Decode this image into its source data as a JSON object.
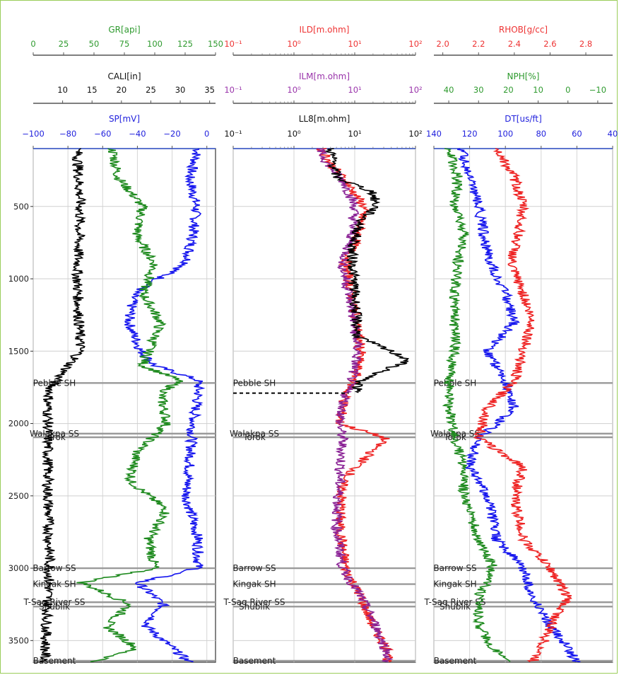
{
  "chart_data": {
    "type": "line",
    "y_axis": {
      "ylim": [
        3650,
        100
      ],
      "ticks": [
        500,
        1000,
        1500,
        2000,
        2500,
        3000,
        3500
      ],
      "grid": true
    },
    "panels": [
      {
        "axes": [
          {
            "title": "GR[api]",
            "color": "#2e9a2e",
            "xlim": [
              0,
              150
            ],
            "ticks": [
              "0",
              "25",
              "50",
              "75",
              "100",
              "125",
              "150"
            ],
            "tick_values": [
              0,
              25,
              50,
              75,
              100,
              125,
              150
            ]
          },
          {
            "title": "CALI[in]",
            "color": "#111111",
            "xlim": [
              5,
              36
            ],
            "ticks": [
              "10",
              "15",
              "20",
              "25",
              "30",
              "35"
            ],
            "tick_values": [
              10,
              15,
              20,
              25,
              30,
              35
            ]
          },
          {
            "title": "SP[mV]",
            "color": "#2222dd",
            "xlim": [
              -100,
              5
            ],
            "ticks": [
              "−100",
              "−80",
              "−60",
              "−40",
              "−20",
              "0"
            ],
            "tick_values": [
              -100,
              -80,
              -60,
              -40,
              -20,
              0
            ]
          }
        ],
        "grid_x": [
          -100,
          -80,
          -60,
          -40,
          -20,
          0
        ],
        "series": [
          {
            "axis": 2,
            "color": "#1515ee",
            "depth": [
              100,
              300,
              500,
              700,
              900,
              1000,
              1100,
              1300,
              1500,
              1600,
              1700,
              1800,
              2000,
              2300,
              2500,
              2800,
              3000,
              3100,
              3250,
              3400,
              3550,
              3650
            ],
            "values": [
              -5,
              -10,
              -6,
              -8,
              -12,
              -28,
              -42,
              -45,
              -38,
              -30,
              -5,
              -5,
              -8,
              -10,
              -12,
              -5,
              -5,
              -40,
              -25,
              -35,
              -20,
              -10
            ]
          },
          {
            "axis": 0,
            "color": "#1e8a1e",
            "depth": [
              100,
              300,
              500,
              700,
              900,
              1100,
              1300,
              1500,
              1600,
              1700,
              1800,
              2000,
              2200,
              2400,
              2600,
              2800,
              3000,
              3100,
              3250,
              3400,
              3550,
              3650
            ],
            "values": [
              65,
              70,
              90,
              85,
              100,
              90,
              105,
              95,
              90,
              120,
              105,
              110,
              85,
              80,
              110,
              95,
              100,
              40,
              80,
              60,
              85,
              50
            ]
          },
          {
            "axis": 1,
            "color": "#000000",
            "depth": [
              100,
              500,
              1000,
              1500,
              1650,
              1750,
              1850,
              2500,
              3000,
              3600,
              3650
            ],
            "values": [
              12.5,
              13,
              12.5,
              13,
              10,
              8,
              7.5,
              7.5,
              7.8,
              7,
              7
            ]
          }
        ],
        "formations": [
          {
            "name": "Pebble SH",
            "depth": 1720
          },
          {
            "name": "Walakpa SS",
            "depth": 2070
          },
          {
            "name": "Torok",
            "depth": 2095
          },
          {
            "name": "Barrow SS",
            "depth": 3000
          },
          {
            "name": "Kingak SH",
            "depth": 3110
          },
          {
            "name": "T-Sag River SS",
            "depth": 3235
          },
          {
            "name": "Shublik",
            "depth": 3265
          },
          {
            "name": "Basement",
            "depth": 3640
          }
        ]
      },
      {
        "axes": [
          {
            "title": "ILD[m.ohm]",
            "color": "#ee3333",
            "xlim": [
              -1,
              2
            ],
            "scale": "log",
            "ticks": [
              "10⁻¹",
              "10⁰",
              "10¹",
              "10²"
            ],
            "tick_values": [
              -1,
              0,
              1,
              2
            ]
          },
          {
            "title": "ILM[m.ohm]",
            "color": "#9933aa",
            "xlim": [
              -1,
              2
            ],
            "scale": "log",
            "ticks": [
              "10⁻¹",
              "10⁰",
              "10¹",
              "10²"
            ],
            "tick_values": [
              -1,
              0,
              1,
              2
            ]
          },
          {
            "title": "LL8[m.ohm]",
            "color": "#111111",
            "xlim": [
              -1,
              2
            ],
            "scale": "log",
            "ticks": [
              "10⁻¹",
              "10⁰",
              "10¹",
              "10²"
            ],
            "tick_values": [
              -1,
              0,
              1,
              2
            ]
          }
        ],
        "grid_x": [
          -1,
          0,
          1,
          2
        ],
        "series": [
          {
            "axis": 0,
            "color": "#ee2222",
            "depth": [
              100,
              200,
              350,
              500,
              700,
              900,
              1200,
              1500,
              1700,
              1800,
              2000,
              2100,
              2400,
              2700,
              3000,
              3200,
              3400,
              3600,
              3650
            ],
            "values": [
              0.45,
              0.6,
              0.9,
              1.15,
              1.05,
              0.85,
              1.0,
              1.1,
              1.0,
              0.85,
              0.75,
              1.5,
              0.8,
              0.75,
              0.85,
              1.1,
              1.3,
              1.6,
              1.5
            ]
          },
          {
            "axis": 1,
            "color": "#8a2295",
            "depth": [
              100,
              200,
              350,
              500,
              700,
              900,
              1200,
              1500,
              1700,
              1800,
              2000,
              2100,
              2400,
              2700,
              3000,
              3200,
              3400,
              3600,
              3650
            ],
            "values": [
              0.4,
              0.55,
              0.85,
              1.0,
              0.95,
              0.8,
              0.95,
              1.05,
              0.95,
              0.85,
              0.75,
              0.8,
              0.75,
              0.7,
              0.8,
              1.1,
              1.35,
              1.55,
              1.5
            ]
          },
          {
            "axis": 2,
            "color": "#000000",
            "depth": [
              100,
              300,
              400,
              500,
              600,
              800,
              1100,
              1400,
              1560,
              1700,
              1790
            ],
            "values": [
              0.6,
              0.7,
              1.3,
              1.35,
              1.1,
              0.95,
              1.0,
              1.05,
              1.9,
              1.1,
              1.0
            ]
          },
          {
            "axis": 2,
            "color": "#000000",
            "style": "dashed",
            "depth": [
              1790,
              1790
            ],
            "values": [
              -1,
              0.9
            ]
          }
        ],
        "formations": [
          {
            "name": "Pebble SH",
            "depth": 1720
          },
          {
            "name": "Walakpa SS",
            "depth": 2070
          },
          {
            "name": "Torok",
            "depth": 2095
          },
          {
            "name": "Barrow SS",
            "depth": 3000
          },
          {
            "name": "Kingak SH",
            "depth": 3110
          },
          {
            "name": "T-Sag River SS",
            "depth": 3235
          },
          {
            "name": "Shublik",
            "depth": 3265
          },
          {
            "name": "Basement",
            "depth": 3640
          }
        ]
      },
      {
        "axes": [
          {
            "title": "RHOB[g/cc]",
            "color": "#ee3333",
            "xlim": [
              1.95,
              2.95
            ],
            "ticks": [
              "2.0",
              "2.2",
              "2.4",
              "2.6",
              "2.8"
            ],
            "tick_values": [
              2.0,
              2.2,
              2.4,
              2.6,
              2.8
            ]
          },
          {
            "title": "NPH[%]",
            "color": "#2e9a2e",
            "xlim": [
              45,
              -15
            ],
            "ticks": [
              "40",
              "30",
              "20",
              "10",
              "0",
              "−10"
            ],
            "tick_values": [
              40,
              30,
              20,
              10,
              0,
              -10
            ]
          },
          {
            "title": "DT[us/ft]",
            "color": "#2222dd",
            "xlim": [
              140,
              40
            ],
            "ticks": [
              "140",
              "120",
              "100",
              "80",
              "60",
              "40"
            ],
            "tick_values": [
              140,
              120,
              100,
              80,
              60,
              40
            ]
          }
        ],
        "grid_x": [
          140,
          120,
          100,
          80,
          60,
          40
        ],
        "series": [
          {
            "axis": 2,
            "color": "#1515ee",
            "depth": [
              100,
              300,
              500,
              700,
              900,
              1100,
              1300,
              1500,
              1700,
              1900,
              2100,
              2300,
              2500,
              2800,
              3000,
              3200,
              3400,
              3550,
              3650
            ],
            "values": [
              125,
              120,
              115,
              112,
              108,
              100,
              95,
              110,
              100,
              95,
              115,
              120,
              110,
              105,
              90,
              85,
              75,
              65,
              60
            ]
          },
          {
            "axis": 1,
            "color": "#1e8a1e",
            "depth": [
              100,
              300,
              500,
              700,
              900,
              1100,
              1300,
              1500,
              1700,
              1900,
              2100,
              2300,
              2500,
              2800,
              3000,
              3200,
              3400,
              3550,
              3650
            ],
            "values": [
              40,
              37,
              38,
              35,
              37,
              38,
              38,
              38,
              40,
              40,
              38,
              35,
              35,
              30,
              25,
              30,
              30,
              25,
              20
            ]
          },
          {
            "axis": 0,
            "color": "#ee2222",
            "depth": [
              100,
              300,
              500,
              700,
              900,
              1100,
              1300,
              1500,
              1700,
              1900,
              2100,
              2300,
              2500,
              2800,
              3000,
              3200,
              3400,
              3550,
              3650
            ],
            "values": [
              2.3,
              2.4,
              2.45,
              2.42,
              2.38,
              2.45,
              2.5,
              2.45,
              2.4,
              2.25,
              2.2,
              2.45,
              2.4,
              2.45,
              2.6,
              2.7,
              2.6,
              2.55,
              2.5
            ]
          }
        ],
        "formations": [
          {
            "name": "Pebble SH",
            "depth": 1720
          },
          {
            "name": "Walakpa SS",
            "depth": 2070
          },
          {
            "name": "Torok",
            "depth": 2095
          },
          {
            "name": "Barrow SS",
            "depth": 3000
          },
          {
            "name": "Kingak SH",
            "depth": 3110
          },
          {
            "name": "T-Sag River SS",
            "depth": 3235
          },
          {
            "name": "Shublik",
            "depth": 3265
          },
          {
            "name": "Basement",
            "depth": 3640
          }
        ]
      }
    ]
  }
}
